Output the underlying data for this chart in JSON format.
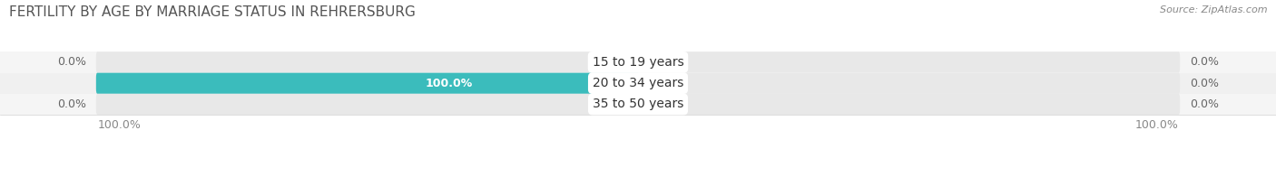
{
  "title": "FERTILITY BY AGE BY MARRIAGE STATUS IN REHRERSBURG",
  "source": "Source: ZipAtlas.com",
  "categories": [
    "15 to 19 years",
    "20 to 34 years",
    "35 to 50 years"
  ],
  "married_values": [
    0.0,
    100.0,
    0.0
  ],
  "unmarried_values": [
    0.0,
    0.0,
    0.0
  ],
  "married_color": "#3bbcbc",
  "unmarried_color": "#f4a0b5",
  "bg_bar_color": "#e8e8e8",
  "bar_height": 0.52,
  "max_value": 100.0,
  "title_fontsize": 11,
  "label_fontsize": 10,
  "value_fontsize": 9,
  "legend_fontsize": 10,
  "figure_bg": "#ffffff",
  "row_sep_color": "#d0d0d0",
  "text_color_dark": "#333333",
  "text_color_mid": "#555555",
  "text_color_light": "#888888",
  "value_label_color": "#666666",
  "bottom_label_color": "#888888"
}
